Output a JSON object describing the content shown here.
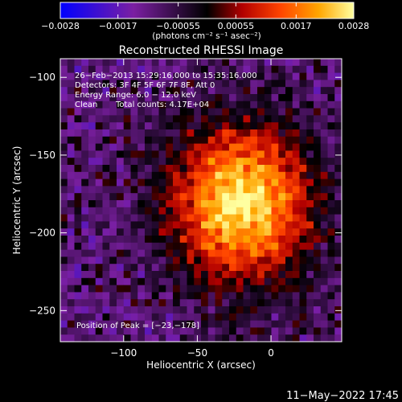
{
  "chart_data": {
    "type": "heatmap",
    "title": "Reconstructed RHESSI Image",
    "xlabel": "Heliocentric X (arcsec)",
    "ylabel": "Heliocentric Y (arcsec)",
    "xlim": [
      -143,
      48
    ],
    "ylim": [
      -270,
      -88
    ],
    "x_ticks": [
      {
        "value": -100,
        "label": "−100"
      },
      {
        "value": -50,
        "label": "−50"
      },
      {
        "value": 0,
        "label": "0"
      }
    ],
    "y_ticks": [
      {
        "value": -100,
        "label": "−100"
      },
      {
        "value": -150,
        "label": "−150"
      },
      {
        "value": -200,
        "label": "−200"
      },
      {
        "value": -250,
        "label": "−250"
      }
    ],
    "colorbar": {
      "range": [
        -0.0028,
        0.0028
      ],
      "ticks": [
        {
          "value": -0.0028,
          "label": "−0.0028"
        },
        {
          "value": -0.0017,
          "label": "−0.0017"
        },
        {
          "value": -0.00055,
          "label": "−0.00055"
        },
        {
          "value": 0.00055,
          "label": "0.00055"
        },
        {
          "value": 0.0017,
          "label": "0.0017"
        },
        {
          "value": 0.0028,
          "label": "0.0028"
        }
      ],
      "units_label": "(photons cm⁻² s⁻¹ asec⁻²)",
      "colors": [
        "#0000ff",
        "#7b1fa2",
        "#000000",
        "#b20000",
        "#ff4400",
        "#ffa500",
        "#ffffa0"
      ]
    },
    "annotations": {
      "time_range": "26−Feb−2013 15:29:16.000 to 15:35:16.000",
      "detectors": "Detectors: 3F 4F 5F 6F 7F 8F, Att 0",
      "energy": "Energy Range: 6.0 − 12.0 keV",
      "method": "Clean",
      "counts": "Total counts: 4.17E+04",
      "peak": "Position of Peak = [−23,−178]"
    },
    "peak_position": [
      -23,
      -178
    ]
  },
  "footer": {
    "date": "11−May−2022 17:45"
  }
}
